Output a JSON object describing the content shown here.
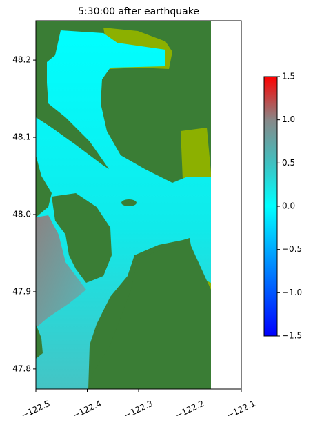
{
  "chart_data": {
    "type": "map",
    "title": "5:30:00 after earthquake",
    "xlim": [
      -122.5,
      -122.1
    ],
    "xticks": [
      {
        "value": -122.5,
        "label": "−122.5"
      },
      {
        "value": -122.4,
        "label": "−122.4"
      },
      {
        "value": -122.3,
        "label": "−122.3"
      },
      {
        "value": -122.2,
        "label": "−122.2"
      },
      {
        "value": -122.1,
        "label": "−122.1"
      }
    ],
    "ylim": [
      47.774,
      48.251
    ],
    "yticks": [
      47.8,
      47.9,
      {
        "value": 48,
        "label": "48.0"
      },
      48.1,
      48.2
    ],
    "colorbar_lim": [
      -1.5,
      1.5
    ],
    "colorbar_ticks": [
      {
        "value": -1.5,
        "label": "−1.5"
      },
      {
        "value": -1,
        "label": "−1.0"
      },
      {
        "value": -0.5,
        "label": "−0.5"
      },
      {
        "value": 0,
        "label": "0.0"
      },
      0.5,
      {
        "value": 1,
        "label": "1.0"
      },
      1.5
    ]
  }
}
